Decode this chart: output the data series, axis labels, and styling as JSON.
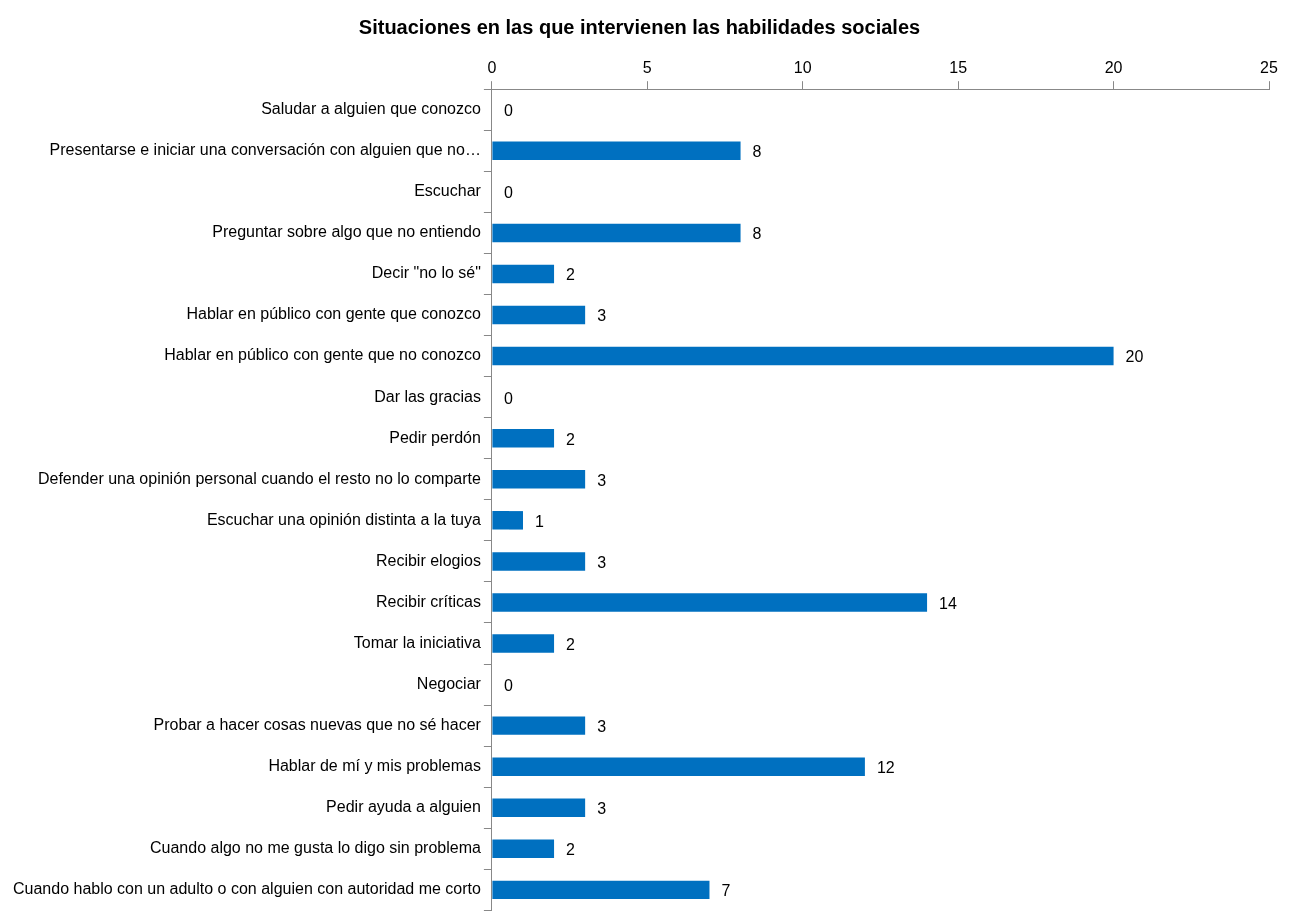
{
  "chart_data": {
    "type": "bar",
    "orientation": "horizontal",
    "title": "Situaciones en las que intervienen las habilidades sociales",
    "categories": [
      "Saludar a alguien que conozco",
      "Presentarse e iniciar una conversación con alguien que no…",
      "Escuchar",
      "Preguntar sobre algo que no entiendo",
      "Decir \"no lo sé\"",
      "Hablar en público con gente que conozco",
      "Hablar en público con gente que no conozco",
      "Dar las gracias",
      "Pedir perdón",
      "Defender una opinión personal cuando el resto no lo comparte",
      "Escuchar una opinión distinta a la tuya",
      "Recibir elogios",
      "Recibir críticas",
      "Tomar la iniciativa",
      "Negociar",
      "Probar a hacer cosas nuevas que no sé hacer",
      "Hablar de mí y mis problemas",
      "Pedir ayuda a alguien",
      "Cuando algo no me gusta lo digo sin problema",
      "Cuando hablo con un adulto o con alguien con autoridad me corto"
    ],
    "values": [
      0,
      8,
      0,
      8,
      2,
      3,
      20,
      0,
      2,
      3,
      1,
      3,
      14,
      2,
      0,
      3,
      12,
      3,
      2,
      7
    ],
    "color": "#0070c0",
    "xlim": [
      0,
      25
    ],
    "xticks": [
      0,
      5,
      10,
      15,
      20,
      25
    ],
    "grid": false,
    "data_labels": true
  }
}
